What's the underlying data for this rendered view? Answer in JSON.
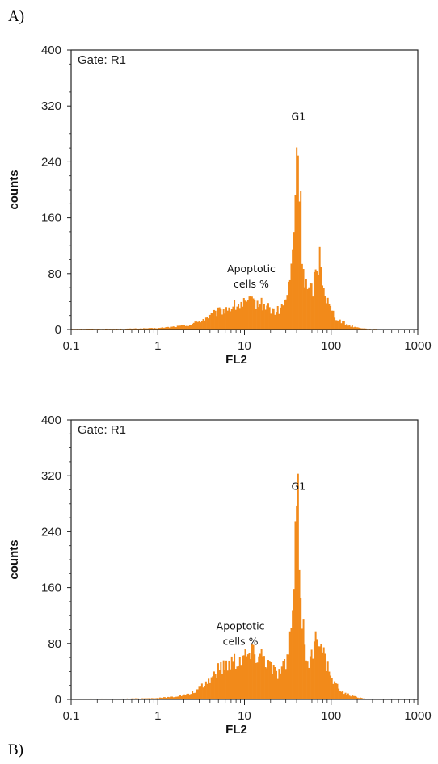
{
  "labels": {
    "a": "A)",
    "b": "B)"
  },
  "chart_data": [
    {
      "type": "bar",
      "panel": "A)",
      "gate": "Gate: R1",
      "xlabel": "FL2",
      "ylabel": "counts",
      "xscale": "log",
      "xlim": [
        0.1,
        1000
      ],
      "ylim": [
        0,
        400
      ],
      "xticks": [
        "0.1",
        "1",
        "10",
        "100",
        "1000"
      ],
      "yticks": [
        "0",
        "80",
        "160",
        "240",
        "320",
        "400"
      ],
      "color": "#f28a1a",
      "annotations": [
        {
          "text": "G1",
          "x": 42,
          "y": 300
        },
        {
          "text": "Apoptotic",
          "x": 12,
          "y": 82
        },
        {
          "text": "cells %",
          "x": 12,
          "y": 60
        }
      ],
      "profile": [
        [
          0.1,
          1
        ],
        [
          0.4,
          1
        ],
        [
          1,
          2
        ],
        [
          1.5,
          4
        ],
        [
          2.2,
          6
        ],
        [
          3,
          12
        ],
        [
          4,
          20
        ],
        [
          5,
          26
        ],
        [
          6,
          30
        ],
        [
          7,
          33
        ],
        [
          8,
          35
        ],
        [
          9,
          37
        ],
        [
          10,
          38
        ],
        [
          12,
          40
        ],
        [
          14,
          39
        ],
        [
          16,
          37
        ],
        [
          18,
          35
        ],
        [
          20,
          30
        ],
        [
          23,
          26
        ],
        [
          26,
          30
        ],
        [
          30,
          45
        ],
        [
          33,
          65
        ],
        [
          36,
          110
        ],
        [
          38,
          180
        ],
        [
          40,
          260
        ],
        [
          41,
          275
        ],
        [
          42,
          250
        ],
        [
          44,
          180
        ],
        [
          47,
          100
        ],
        [
          50,
          70
        ],
        [
          55,
          55
        ],
        [
          60,
          60
        ],
        [
          65,
          75
        ],
        [
          70,
          95
        ],
        [
          73,
          110
        ],
        [
          76,
          100
        ],
        [
          80,
          80
        ],
        [
          85,
          55
        ],
        [
          95,
          35
        ],
        [
          110,
          20
        ],
        [
          130,
          12
        ],
        [
          160,
          6
        ],
        [
          200,
          3
        ],
        [
          260,
          1
        ],
        [
          400,
          0.5
        ],
        [
          1000,
          0
        ]
      ]
    },
    {
      "type": "bar",
      "panel": "B)",
      "gate": "Gate: R1",
      "xlabel": "FL2",
      "ylabel": "counts",
      "xscale": "log",
      "xlim": [
        0.1,
        1000
      ],
      "ylim": [
        0,
        400
      ],
      "xticks": [
        "0.1",
        "1",
        "10",
        "100",
        "1000"
      ],
      "yticks": [
        "0",
        "80",
        "160",
        "240",
        "320",
        "400"
      ],
      "color": "#f28a1a",
      "annotations": [
        {
          "text": "G1",
          "x": 42,
          "y": 300
        },
        {
          "text": "Apoptotic",
          "x": 9,
          "y": 100
        },
        {
          "text": "cells %",
          "x": 9,
          "y": 78
        }
      ],
      "profile": [
        [
          0.1,
          1
        ],
        [
          0.4,
          1
        ],
        [
          1,
          2
        ],
        [
          1.5,
          4
        ],
        [
          2.2,
          7
        ],
        [
          3,
          15
        ],
        [
          4,
          30
        ],
        [
          5,
          45
        ],
        [
          6,
          52
        ],
        [
          7,
          57
        ],
        [
          8,
          60
        ],
        [
          9,
          63
        ],
        [
          10,
          65
        ],
        [
          12,
          68
        ],
        [
          14,
          70
        ],
        [
          16,
          68
        ],
        [
          18,
          60
        ],
        [
          20,
          50
        ],
        [
          23,
          40
        ],
        [
          26,
          42
        ],
        [
          30,
          55
        ],
        [
          33,
          75
        ],
        [
          36,
          130
        ],
        [
          38,
          200
        ],
        [
          40,
          262
        ],
        [
          41,
          275
        ],
        [
          42,
          255
        ],
        [
          44,
          190
        ],
        [
          47,
          110
        ],
        [
          50,
          75
        ],
        [
          55,
          60
        ],
        [
          60,
          65
        ],
        [
          65,
          80
        ],
        [
          70,
          95
        ],
        [
          73,
          105
        ],
        [
          76,
          100
        ],
        [
          80,
          85
        ],
        [
          85,
          60
        ],
        [
          95,
          38
        ],
        [
          110,
          22
        ],
        [
          130,
          13
        ],
        [
          160,
          7
        ],
        [
          200,
          3
        ],
        [
          260,
          1
        ],
        [
          400,
          0.5
        ],
        [
          1000,
          0
        ]
      ]
    }
  ]
}
